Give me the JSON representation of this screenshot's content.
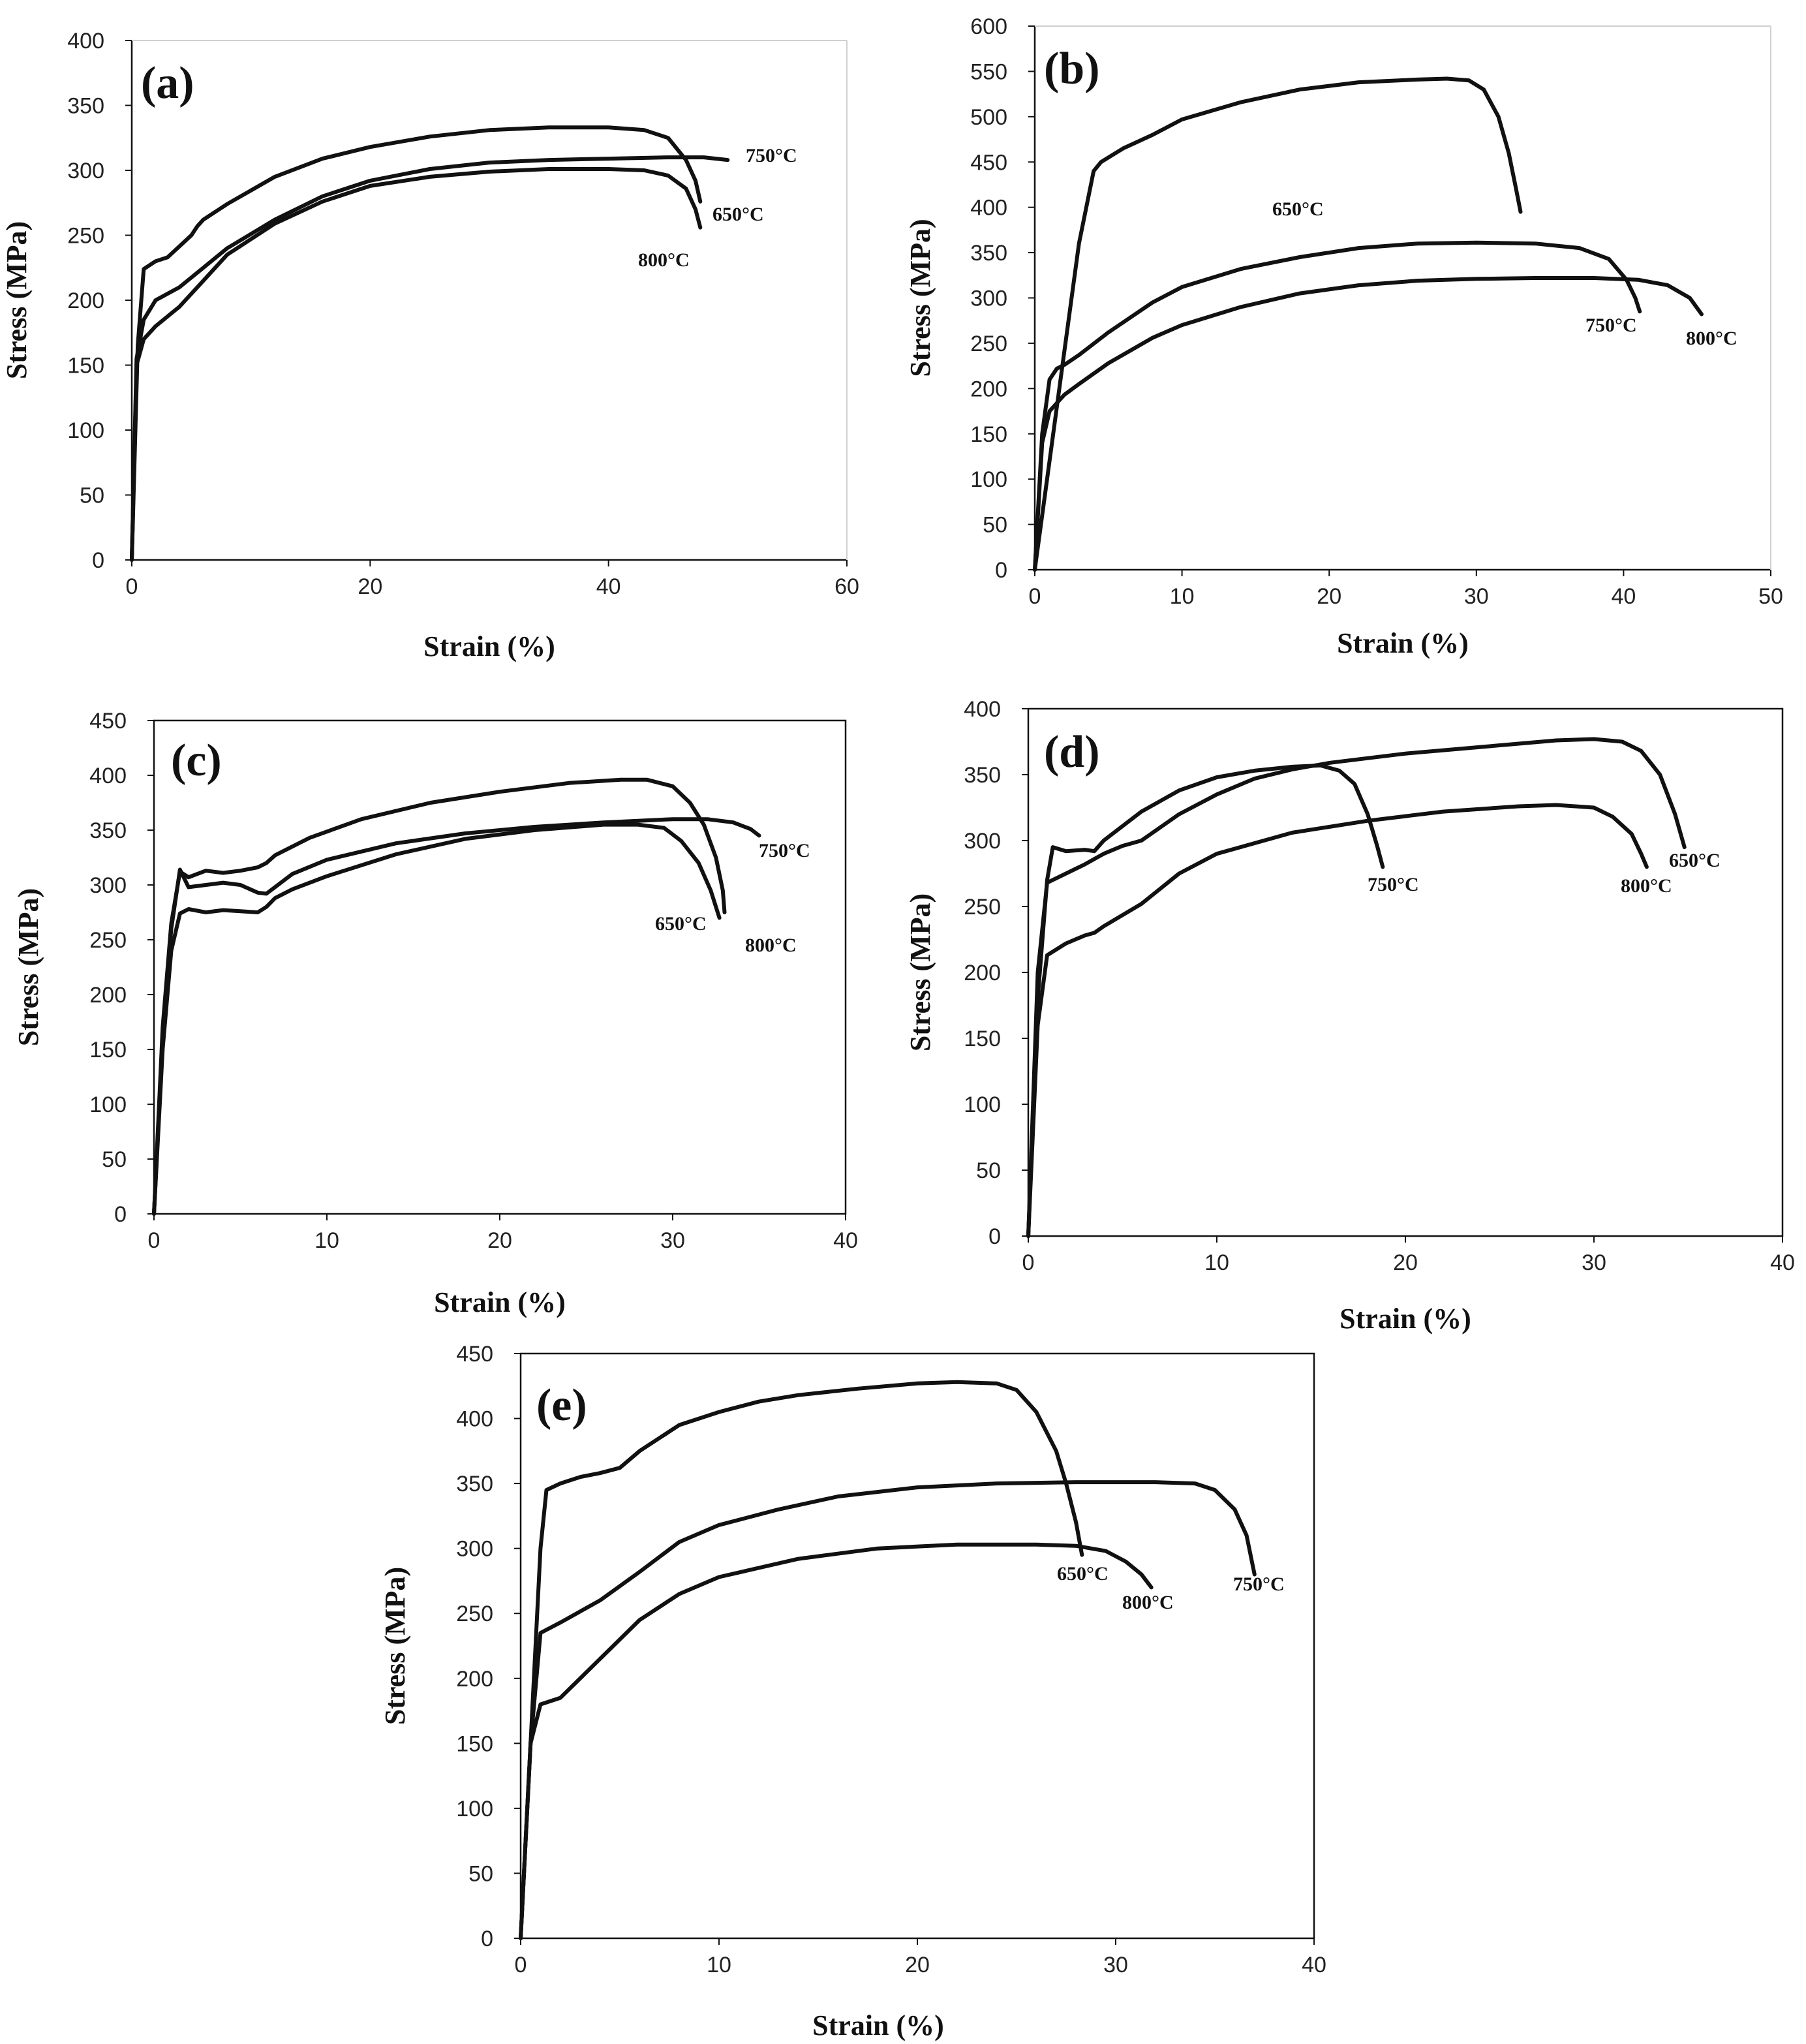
{
  "chart_data": [
    {
      "type": "line",
      "panel": "(a)",
      "xlabel": "Strain (%)",
      "ylabel": "Stress (MPa)",
      "xlim": [
        0,
        60
      ],
      "xticks": [
        0,
        20,
        40,
        60
      ],
      "ylim": [
        0,
        400
      ],
      "yticks": [
        0,
        50,
        100,
        150,
        200,
        250,
        300,
        350,
        400
      ],
      "frame": "open",
      "series": [
        {
          "name": "650°C",
          "x": [
            0,
            0.5,
            1,
            2,
            3,
            5,
            5.5,
            6,
            8,
            12,
            16,
            20,
            25,
            30,
            35,
            40,
            43,
            45,
            46.5,
            47.3,
            47.7
          ],
          "y": [
            0,
            165,
            224,
            230,
            233,
            250,
            257,
            262,
            274,
            295,
            309,
            318,
            326,
            331,
            333,
            333,
            331,
            325,
            308,
            292,
            276
          ]
        },
        {
          "name": "750°C",
          "x": [
            0,
            0.4,
            1,
            2,
            4,
            6,
            8,
            12,
            16,
            20,
            25,
            30,
            35,
            40,
            45,
            48,
            50
          ],
          "y": [
            0,
            155,
            185,
            200,
            210,
            225,
            240,
            262,
            280,
            292,
            301,
            306,
            308,
            309,
            310,
            310,
            308
          ]
        },
        {
          "name": "800°C",
          "x": [
            0,
            0.4,
            1,
            2,
            4,
            6,
            8,
            12,
            16,
            20,
            25,
            30,
            35,
            40,
            43,
            45,
            46.5,
            47.3,
            47.7
          ],
          "y": [
            0,
            150,
            170,
            180,
            195,
            215,
            235,
            259,
            276,
            288,
            295,
            299,
            301,
            301,
            300,
            296,
            286,
            270,
            256
          ]
        }
      ],
      "annotations": [
        "750°C",
        "650°C",
        "800°C"
      ]
    },
    {
      "type": "line",
      "panel": "(b)",
      "xlabel": "Strain (%)",
      "ylabel": "Stress (MPa)",
      "xlim": [
        0,
        50
      ],
      "xticks": [
        0,
        10,
        20,
        30,
        40,
        50
      ],
      "ylim": [
        0,
        600
      ],
      "yticks": [
        0,
        50,
        100,
        150,
        200,
        250,
        300,
        350,
        400,
        450,
        500,
        550,
        600
      ],
      "frame": "open",
      "series": [
        {
          "name": "650°C",
          "x": [
            0,
            1,
            2,
            3,
            4,
            4.5,
            5,
            6,
            8,
            10,
            14,
            18,
            22,
            26,
            28,
            29.5,
            30.5,
            31.5,
            32.2,
            32.7,
            33
          ],
          "y": [
            0,
            120,
            240,
            360,
            440,
            450,
            455,
            465,
            480,
            497,
            516,
            530,
            538,
            541,
            542,
            540,
            530,
            500,
            460,
            420,
            395
          ]
        },
        {
          "name": "750°C",
          "x": [
            0,
            0.5,
            1,
            1.5,
            2,
            3,
            5,
            8,
            10,
            14,
            18,
            22,
            26,
            30,
            34,
            37,
            39,
            40.2,
            40.8,
            41.1
          ],
          "y": [
            0,
            150,
            210,
            222,
            226,
            237,
            262,
            295,
            312,
            332,
            345,
            355,
            360,
            361,
            360,
            355,
            343,
            320,
            300,
            285
          ]
        },
        {
          "name": "800°C",
          "x": [
            0,
            0.5,
            1,
            2,
            3,
            5,
            8,
            10,
            14,
            18,
            22,
            26,
            30,
            34,
            38,
            41,
            43,
            44.5,
            45.3
          ],
          "y": [
            0,
            140,
            175,
            193,
            205,
            228,
            256,
            270,
            290,
            305,
            314,
            319,
            321,
            322,
            322,
            320,
            314,
            300,
            282
          ]
        }
      ],
      "annotations": [
        "650°C",
        "750°C",
        "800°C"
      ]
    },
    {
      "type": "line",
      "panel": "(c)",
      "xlabel": "Strain (%)",
      "ylabel": "Stress (MPa)",
      "xlim": [
        0,
        40
      ],
      "xticks": [
        0,
        10,
        20,
        30,
        40
      ],
      "ylim": [
        0,
        450
      ],
      "yticks": [
        0,
        50,
        100,
        150,
        200,
        250,
        300,
        350,
        400,
        450
      ],
      "frame": "box",
      "series": [
        {
          "name": "650°C",
          "x": [
            0,
            0.5,
            1,
            1.5,
            2,
            3,
            4,
            5,
            6,
            6.5,
            7,
            9,
            12,
            16,
            20,
            24,
            27,
            28.5,
            30,
            31,
            31.8,
            32.5,
            32.9,
            33
          ],
          "y": [
            0,
            170,
            265,
            312,
            307,
            313,
            311,
            313,
            316,
            320,
            327,
            343,
            360,
            375,
            385,
            393,
            396,
            396,
            390,
            375,
            355,
            325,
            295,
            275
          ]
        },
        {
          "name": "750°C",
          "x": [
            0,
            0.5,
            1,
            1.5,
            2,
            3,
            4,
            5,
            6,
            6.5,
            7,
            8,
            10,
            14,
            18,
            22,
            26,
            30,
            32,
            33.5,
            34.5,
            35
          ],
          "y": [
            0,
            160,
            260,
            314,
            298,
            300,
            302,
            300,
            293,
            292,
            298,
            310,
            323,
            338,
            347,
            353,
            357,
            360,
            360,
            357,
            351,
            345
          ]
        },
        {
          "name": "800°C",
          "x": [
            0,
            0.5,
            1,
            1.5,
            2,
            3,
            4,
            5,
            6,
            6.5,
            7,
            8,
            10,
            14,
            18,
            22,
            26,
            28,
            29.5,
            30.5,
            31.5,
            32.2,
            32.7
          ],
          "y": [
            0,
            150,
            240,
            274,
            278,
            275,
            277,
            276,
            275,
            280,
            288,
            296,
            308,
            328,
            342,
            350,
            355,
            355,
            352,
            340,
            320,
            295,
            270
          ]
        }
      ],
      "annotations": [
        "750°C",
        "650°C",
        "800°C"
      ]
    },
    {
      "type": "line",
      "panel": "(d)",
      "xlabel": "Strain (%)",
      "ylabel": "Stress (MPa)",
      "xlim": [
        0,
        40
      ],
      "xticks": [
        0,
        10,
        20,
        30,
        40
      ],
      "ylim": [
        0,
        400
      ],
      "yticks": [
        0,
        50,
        100,
        150,
        200,
        250,
        300,
        350,
        400
      ],
      "frame": "box",
      "series": [
        {
          "name": "650°C",
          "x": [
            0,
            0.5,
            1,
            2,
            3,
            4,
            5,
            6,
            6.5,
            8,
            10,
            12,
            14,
            16,
            20,
            24,
            28,
            30,
            31.5,
            32.5,
            33.5,
            34.3,
            34.8
          ],
          "y": [
            0,
            200,
            268,
            275,
            282,
            290,
            296,
            300,
            305,
            320,
            335,
            347,
            354,
            359,
            366,
            371,
            376,
            377,
            375,
            368,
            350,
            320,
            295
          ]
        },
        {
          "name": "750°C",
          "x": [
            0,
            0.5,
            1,
            1.3,
            2,
            3,
            3.5,
            4,
            6,
            8,
            10,
            12,
            14,
            15.5,
            16.5,
            17.3,
            18,
            18.5,
            18.8
          ],
          "y": [
            0,
            180,
            270,
            295,
            292,
            293,
            292,
            300,
            322,
            338,
            348,
            353,
            356,
            357,
            353,
            343,
            320,
            296,
            280
          ]
        },
        {
          "name": "800°C",
          "x": [
            0,
            0.5,
            1,
            2,
            3,
            3.5,
            4,
            6,
            8,
            10,
            14,
            18,
            22,
            26,
            28,
            30,
            31,
            32,
            32.5,
            32.8
          ],
          "y": [
            0,
            160,
            213,
            222,
            228,
            230,
            235,
            252,
            275,
            290,
            306,
            315,
            322,
            326,
            327,
            325,
            318,
            305,
            290,
            280
          ]
        }
      ],
      "annotations": [
        "750°C",
        "650°C",
        "800°C"
      ]
    },
    {
      "type": "line",
      "panel": "(e)",
      "xlabel": "Strain (%)",
      "ylabel": "Stress (MPa)",
      "xlim": [
        0,
        40
      ],
      "xticks": [
        0,
        10,
        20,
        30,
        40
      ],
      "ylim": [
        0,
        450
      ],
      "yticks": [
        0,
        50,
        100,
        150,
        200,
        250,
        300,
        350,
        400,
        450
      ],
      "frame": "box",
      "series": [
        {
          "name": "650°C",
          "x": [
            0,
            0.5,
            1,
            1.3,
            2,
            3,
            4,
            5,
            6,
            8,
            10,
            12,
            14,
            17,
            20,
            22,
            24,
            25,
            26,
            27,
            27.5,
            28,
            28.3
          ],
          "y": [
            0,
            150,
            300,
            345,
            350,
            355,
            358,
            362,
            375,
            395,
            405,
            413,
            418,
            423,
            427,
            428,
            427,
            422,
            405,
            375,
            350,
            320,
            295
          ]
        },
        {
          "name": "750°C",
          "x": [
            0,
            0.5,
            1,
            2,
            4,
            6,
            8,
            10,
            13,
            16,
            20,
            24,
            28,
            32,
            34,
            35,
            36,
            36.6,
            37
          ],
          "y": [
            0,
            150,
            235,
            243,
            260,
            282,
            305,
            318,
            330,
            340,
            347,
            350,
            351,
            351,
            350,
            345,
            330,
            310,
            280
          ]
        },
        {
          "name": "800°C",
          "x": [
            0,
            0.5,
            1,
            2,
            3,
            4,
            6,
            8,
            10,
            14,
            18,
            22,
            26,
            28,
            29.5,
            30.5,
            31.3,
            31.8
          ],
          "y": [
            0,
            150,
            180,
            185,
            200,
            215,
            245,
            265,
            278,
            292,
            300,
            303,
            303,
            302,
            298,
            290,
            280,
            270
          ]
        }
      ],
      "annotations": [
        "650°C",
        "800°C",
        "750°C"
      ]
    }
  ]
}
